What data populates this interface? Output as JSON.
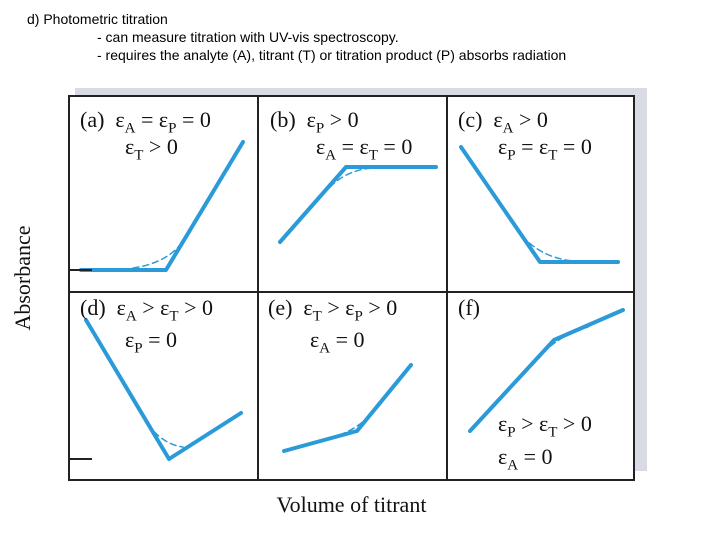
{
  "header": {
    "title": "d) Photometric titration",
    "line1": "- can measure titration with UV-vis spectroscopy.",
    "line2": "- requires the analyte (A), titrant (T) or titration product (P) absorbs radiation"
  },
  "figure": {
    "ylabel": "Absorbance",
    "xlabel": "Volume of titrant",
    "line_color": "#2a9ad8",
    "panels": [
      {
        "id": "a",
        "letter": "(a)",
        "cond1": "εA = εP = 0",
        "cond2": "εT > 0"
      },
      {
        "id": "b",
        "letter": "(b)",
        "cond1": "εP > 0",
        "cond2": "εA = εT = 0"
      },
      {
        "id": "c",
        "letter": "(c)",
        "cond1": "εA > 0",
        "cond2": "εP = εT = 0"
      },
      {
        "id": "d",
        "letter": "(d)",
        "cond1": "εA > εT > 0",
        "cond2": "εP = 0"
      },
      {
        "id": "e",
        "letter": "(e)",
        "cond1": "εT > εP > 0",
        "cond2": "εA = 0"
      },
      {
        "id": "f",
        "letter": "(f)",
        "cond1": "εP > εT > 0",
        "cond2": "εA = 0"
      }
    ]
  }
}
